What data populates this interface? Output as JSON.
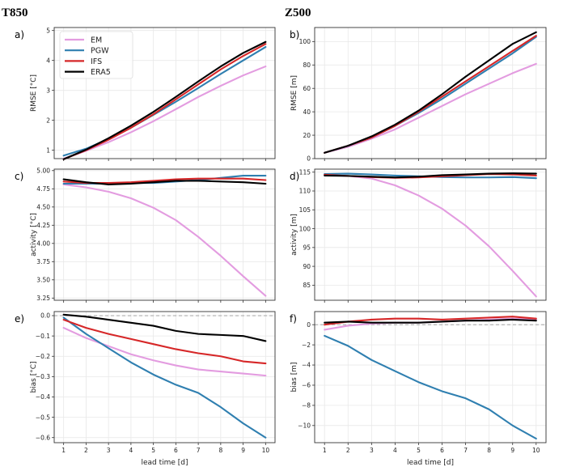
{
  "columns": [
    "T850",
    "Z500"
  ],
  "legend": [
    {
      "name": "EM",
      "color": "#e39ce0"
    },
    {
      "name": "PGW",
      "color": "#2f7fb0"
    },
    {
      "name": "IFS",
      "color": "#d62728"
    },
    {
      "name": "ERA5",
      "color": "#000000"
    }
  ],
  "chart_data": [
    {
      "label": "a)",
      "type": "line",
      "xlabel": "",
      "ylabel": "RMSE [°C]",
      "x": [
        1,
        2,
        3,
        4,
        5,
        6,
        7,
        8,
        9,
        10
      ],
      "ylim": [
        0.72,
        5.1
      ],
      "yticks": [
        1,
        2,
        3,
        4,
        5
      ],
      "ytick_labels": [
        "1",
        "2",
        "3",
        "4",
        "5"
      ],
      "xticks_visible": false,
      "series": [
        {
          "name": "EM",
          "values": [
            0.72,
            0.98,
            1.27,
            1.6,
            1.97,
            2.37,
            2.78,
            3.15,
            3.5,
            3.8
          ]
        },
        {
          "name": "PGW",
          "values": [
            0.82,
            1.05,
            1.38,
            1.75,
            2.18,
            2.62,
            3.08,
            3.55,
            4.0,
            4.45
          ]
        },
        {
          "name": "IFS",
          "values": [
            0.7,
            1.0,
            1.35,
            1.75,
            2.2,
            2.7,
            3.2,
            3.7,
            4.15,
            4.55
          ]
        },
        {
          "name": "ERA5",
          "values": [
            0.7,
            1.02,
            1.4,
            1.82,
            2.28,
            2.78,
            3.3,
            3.8,
            4.25,
            4.62
          ]
        }
      ]
    },
    {
      "label": "b)",
      "type": "line",
      "xlabel": "",
      "ylabel": "RMSE [m]",
      "x": [
        1,
        2,
        3,
        4,
        5,
        6,
        7,
        8,
        9,
        10
      ],
      "ylim": [
        0,
        112
      ],
      "yticks": [
        0,
        20,
        40,
        60,
        80,
        100
      ],
      "ytick_labels": [
        "0",
        "20",
        "40",
        "60",
        "80",
        "100"
      ],
      "xticks_visible": false,
      "series": [
        {
          "name": "EM",
          "values": [
            5,
            10,
            17,
            25,
            35,
            45,
            55,
            64,
            73,
            81
          ]
        },
        {
          "name": "PGW",
          "values": [
            5,
            11,
            18,
            28,
            39,
            51,
            64,
            77,
            90,
            104
          ]
        },
        {
          "name": "IFS",
          "values": [
            5,
            11,
            18,
            28,
            40,
            53,
            66,
            79,
            92,
            105
          ]
        },
        {
          "name": "ERA5",
          "values": [
            5,
            11,
            19,
            29,
            41,
            55,
            70,
            84,
            98,
            108
          ]
        }
      ]
    },
    {
      "label": "c)",
      "type": "line",
      "xlabel": "",
      "ylabel": "activity [°C]",
      "x": [
        1,
        2,
        3,
        4,
        5,
        6,
        7,
        8,
        9,
        10
      ],
      "ylim": [
        3.22,
        5.02
      ],
      "yticks": [
        3.25,
        3.5,
        3.75,
        4.0,
        4.25,
        4.5,
        4.75,
        5.0
      ],
      "ytick_labels": [
        "3.25",
        "3.50",
        "3.75",
        "4.00",
        "4.25",
        "4.50",
        "4.75",
        "5.00"
      ],
      "xticks_visible": false,
      "series": [
        {
          "name": "EM",
          "values": [
            4.81,
            4.77,
            4.71,
            4.62,
            4.49,
            4.32,
            4.09,
            3.83,
            3.55,
            3.28
          ]
        },
        {
          "name": "PGW",
          "values": [
            4.82,
            4.82,
            4.82,
            4.83,
            4.83,
            4.85,
            4.87,
            4.9,
            4.93,
            4.93
          ]
        },
        {
          "name": "IFS",
          "values": [
            4.85,
            4.83,
            4.83,
            4.84,
            4.86,
            4.88,
            4.89,
            4.89,
            4.89,
            4.87
          ]
        },
        {
          "name": "ERA5",
          "values": [
            4.88,
            4.84,
            4.81,
            4.82,
            4.84,
            4.86,
            4.86,
            4.85,
            4.84,
            4.82
          ]
        }
      ]
    },
    {
      "label": "d)",
      "type": "line",
      "xlabel": "",
      "ylabel": "activity [m]",
      "x": [
        1,
        2,
        3,
        4,
        5,
        6,
        7,
        8,
        9,
        10
      ],
      "ylim": [
        81,
        115.8
      ],
      "yticks": [
        85,
        90,
        95,
        100,
        105,
        110,
        115
      ],
      "ytick_labels": [
        "85",
        "90",
        "95",
        "100",
        "105",
        "110",
        "115"
      ],
      "xticks_visible": false,
      "series": [
        {
          "name": "EM",
          "values": [
            114.2,
            114,
            113.3,
            111.5,
            108.8,
            105.3,
            100.8,
            95.3,
            88.8,
            82
          ]
        },
        {
          "name": "PGW",
          "values": [
            114.5,
            114.6,
            114.4,
            114.1,
            113.9,
            113.7,
            113.6,
            113.6,
            113.7,
            113.4
          ]
        },
        {
          "name": "IFS",
          "values": [
            114.3,
            114,
            113.7,
            113.5,
            113.6,
            113.9,
            114.2,
            114.5,
            114.4,
            114.1
          ]
        },
        {
          "name": "ERA5",
          "values": [
            114.1,
            114,
            113.8,
            113.6,
            113.8,
            114.2,
            114.4,
            114.6,
            114.7,
            114.6
          ]
        }
      ]
    },
    {
      "label": "e)",
      "type": "line",
      "xlabel": "lead time [d]",
      "ylabel": "bias [°C]",
      "x": [
        1,
        2,
        3,
        4,
        5,
        6,
        7,
        8,
        9,
        10
      ],
      "ylim": [
        -0.625,
        0.02
      ],
      "yticks": [
        0,
        -0.1,
        -0.2,
        -0.3,
        -0.4,
        -0.5,
        -0.6
      ],
      "ytick_labels": [
        "0.0",
        "−0.1",
        "−0.2",
        "−0.3",
        "−0.4",
        "−0.5",
        "−0.6"
      ],
      "xticks_visible": true,
      "xtick_labels": [
        "1",
        "2",
        "3",
        "4",
        "5",
        "6",
        "7",
        "8",
        "9",
        "10"
      ],
      "zero_line": true,
      "series": [
        {
          "name": "EM",
          "values": [
            -0.06,
            -0.11,
            -0.15,
            -0.19,
            -0.22,
            -0.245,
            -0.265,
            -0.275,
            -0.285,
            -0.295
          ]
        },
        {
          "name": "PGW",
          "values": [
            -0.01,
            -0.09,
            -0.16,
            -0.23,
            -0.29,
            -0.34,
            -0.38,
            -0.45,
            -0.53,
            -0.6
          ]
        },
        {
          "name": "IFS",
          "values": [
            -0.02,
            -0.06,
            -0.09,
            -0.115,
            -0.14,
            -0.165,
            -0.185,
            -0.2,
            -0.225,
            -0.235
          ]
        },
        {
          "name": "ERA5",
          "values": [
            0.005,
            -0.005,
            -0.02,
            -0.035,
            -0.05,
            -0.075,
            -0.09,
            -0.095,
            -0.1,
            -0.125
          ]
        }
      ]
    },
    {
      "label": "f)",
      "type": "line",
      "xlabel": "lead time [d]",
      "ylabel": "bias [m]",
      "x": [
        1,
        2,
        3,
        4,
        5,
        6,
        7,
        8,
        9,
        10
      ],
      "ylim": [
        -11.7,
        1.3
      ],
      "yticks": [
        0,
        -2,
        -4,
        -6,
        -8,
        -10
      ],
      "ytick_labels": [
        "0",
        "−2",
        "−4",
        "−6",
        "−8",
        "−10"
      ],
      "xticks_visible": true,
      "xtick_labels": [
        "1",
        "2",
        "3",
        "4",
        "5",
        "6",
        "7",
        "8",
        "9",
        "10"
      ],
      "zero_line": true,
      "series": [
        {
          "name": "EM",
          "values": [
            -0.5,
            -0.1,
            0.1,
            0.2,
            0.2,
            0.3,
            0.4,
            0.5,
            0.6,
            0.5
          ]
        },
        {
          "name": "PGW",
          "values": [
            -1.1,
            -2.1,
            -3.5,
            -4.6,
            -5.7,
            -6.6,
            -7.3,
            -8.4,
            -10,
            -11.3
          ]
        },
        {
          "name": "IFS",
          "values": [
            0,
            0.3,
            0.5,
            0.6,
            0.6,
            0.5,
            0.6,
            0.7,
            0.8,
            0.6
          ]
        },
        {
          "name": "ERA5",
          "values": [
            0.2,
            0.3,
            0.2,
            0.2,
            0.2,
            0.3,
            0.4,
            0.4,
            0.5,
            0.4
          ]
        }
      ]
    }
  ]
}
